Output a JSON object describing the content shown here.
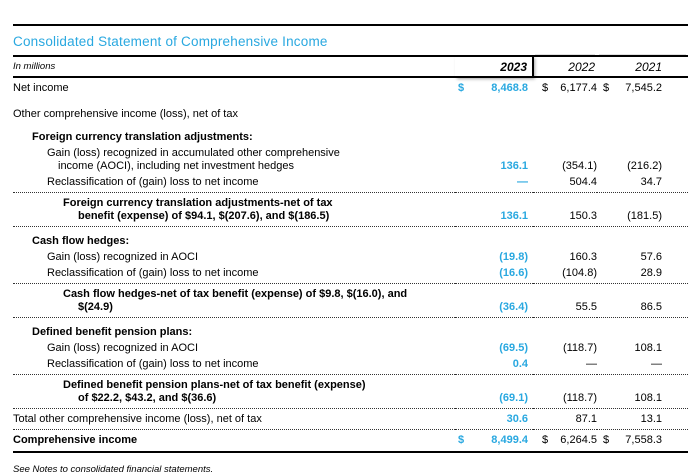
{
  "title": "Consolidated Statement of Comprehensive Income",
  "footnote": "See Notes to consolidated financial statements.",
  "accent_color": "#29a8e0",
  "table": {
    "unit_label": "In millions",
    "years": [
      "2023",
      "2022",
      "2021"
    ],
    "rows": [
      {
        "label": "Net income",
        "level": 0,
        "dollar": true,
        "values": [
          "8,468.8",
          "6,177.4",
          "7,545.2"
        ],
        "gap": "sm"
      },
      {
        "label": "Other comprehensive income (loss), net of tax",
        "level": 0,
        "values": [
          "",
          "",
          ""
        ],
        "gap": "lg"
      },
      {
        "label": "Foreign currency translation adjustments:",
        "level": 1,
        "values": [
          "",
          "",
          ""
        ],
        "gap": "md"
      },
      {
        "label": "Gain (loss) recognized in accumulated other comprehensive\nincome (AOCI), including net investment hedges",
        "level": 2,
        "values": [
          "136.1",
          "(354.1)",
          "(216.2)"
        ]
      },
      {
        "label": "Reclassification of (gain) loss to net income",
        "level": 2,
        "values": [
          "—",
          "504.4",
          "34.7"
        ],
        "border": "dotted"
      },
      {
        "label": "Foreign currency translation adjustments-net of tax\nbenefit (expense) of $94.1, $(207.6), and $(186.5)",
        "level": 3,
        "values": [
          "136.1",
          "150.3",
          "(181.5)"
        ],
        "border": "dotted",
        "gap": "sm"
      },
      {
        "label": "Cash flow hedges:",
        "level": 1,
        "values": [
          "",
          "",
          ""
        ],
        "gap": "md"
      },
      {
        "label": "Gain (loss) recognized in AOCI",
        "level": 2,
        "values": [
          "(19.8)",
          "160.3",
          "57.6"
        ]
      },
      {
        "label": "Reclassification of (gain) loss to net income",
        "level": 2,
        "values": [
          "(16.6)",
          "(104.8)",
          "28.9"
        ],
        "border": "dotted"
      },
      {
        "label": "Cash flow hedges-net of tax benefit (expense) of $9.8, $(16.0), and\n$(24.9)",
        "level": 3,
        "values": [
          "(36.4)",
          "55.5",
          "86.5"
        ],
        "border": "dotted",
        "gap": "sm"
      },
      {
        "label": "Defined benefit pension plans:",
        "level": 1,
        "values": [
          "",
          "",
          ""
        ],
        "gap": "md"
      },
      {
        "label": "Gain (loss) recognized in AOCI",
        "level": 2,
        "values": [
          "(69.5)",
          "(118.7)",
          "108.1"
        ]
      },
      {
        "label": "Reclassification of (gain) loss to net income",
        "level": 2,
        "values": [
          "0.4",
          "—",
          "—"
        ],
        "border": "dotted"
      },
      {
        "label": "Defined benefit pension plans-net of tax benefit (expense)\nof $22.2, $43.2, and $(36.6)",
        "level": 3,
        "values": [
          "(69.1)",
          "(118.7)",
          "108.1"
        ],
        "border": "dotted",
        "gap": "sm"
      },
      {
        "label": "Total other comprehensive income (loss), net of tax",
        "level": 0,
        "values": [
          "30.6",
          "87.1",
          "13.1"
        ],
        "border": "dotted",
        "gap": "sm"
      },
      {
        "label": "Comprehensive income",
        "level": 0,
        "bold": true,
        "dollar": true,
        "values": [
          "8,499.4",
          "6,264.5",
          "7,558.3"
        ],
        "border": "solid",
        "gap": "sm"
      }
    ]
  }
}
